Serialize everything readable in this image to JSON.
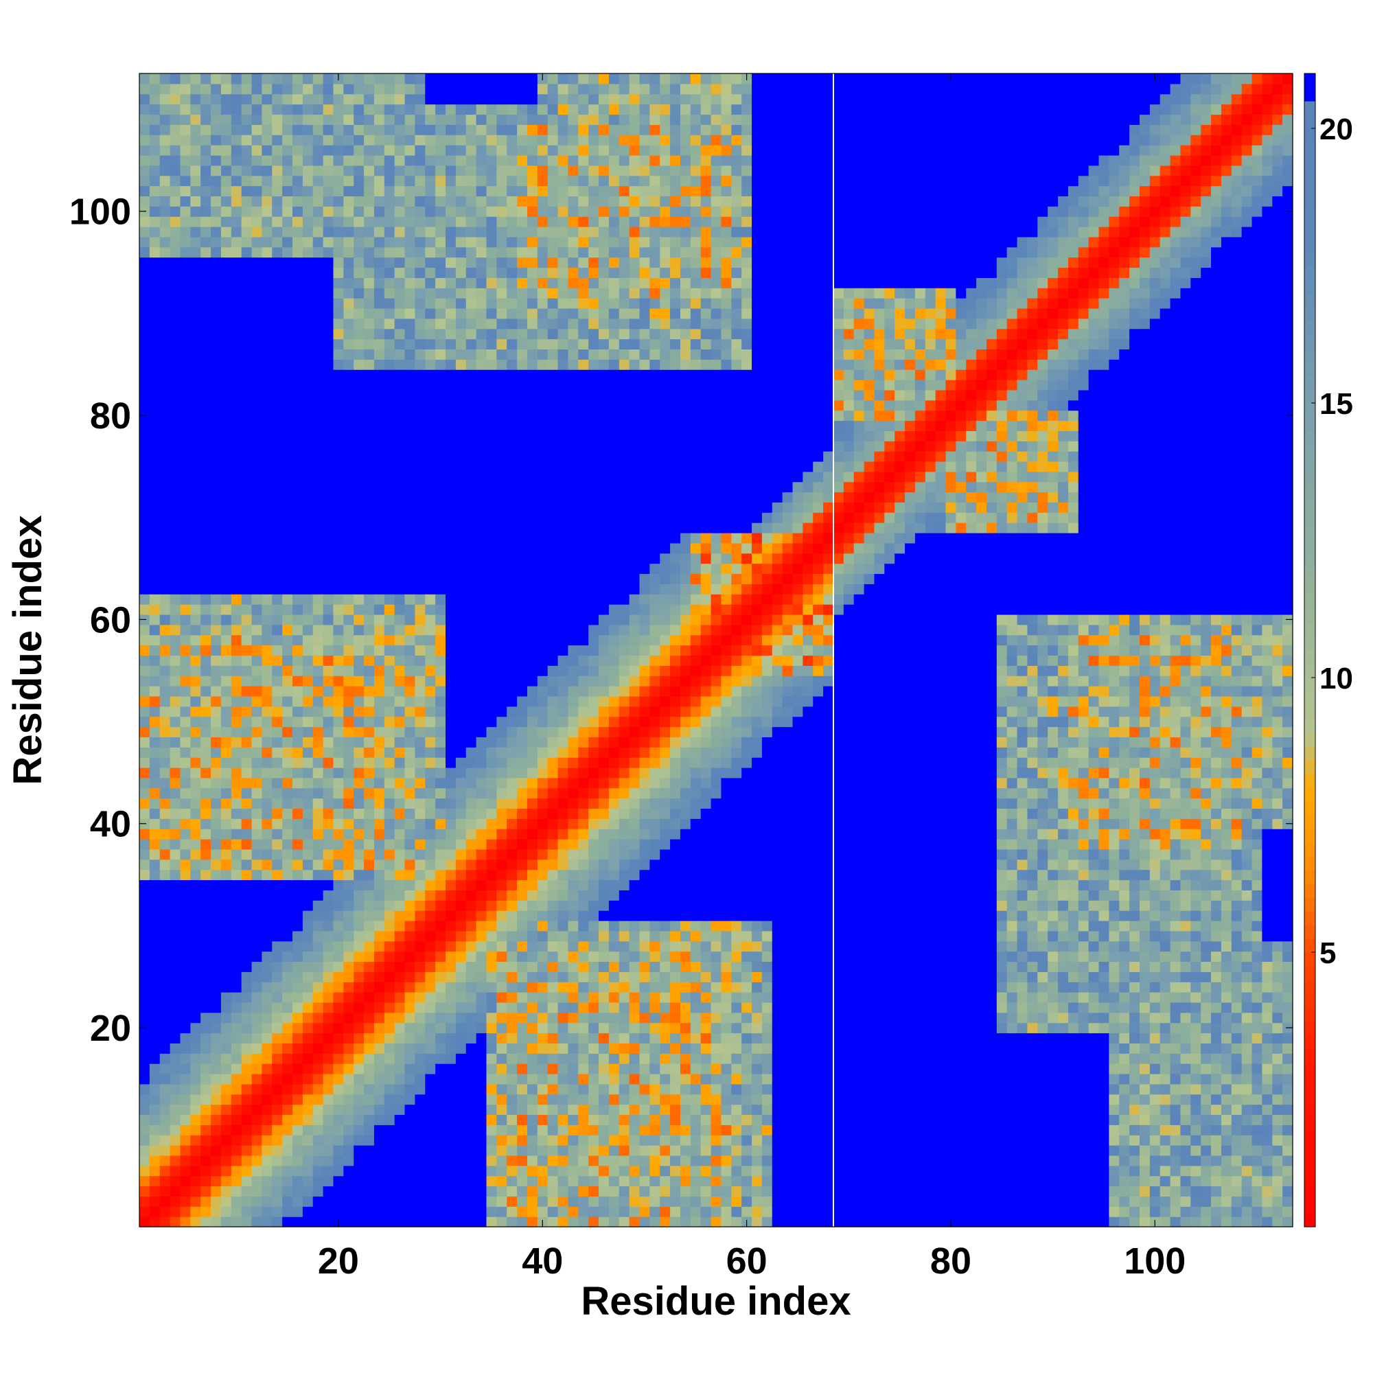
{
  "chart_data": {
    "type": "heatmap",
    "title": "",
    "xlabel": "Residue index",
    "ylabel": "Residue index",
    "n_residues": 113,
    "x_range": [
      0.5,
      113.5
    ],
    "y_range": [
      0.5,
      113.5
    ],
    "x_ticks": [
      20,
      40,
      60,
      80,
      100
    ],
    "y_ticks": [
      20,
      40,
      60,
      80,
      100
    ],
    "grid": false,
    "value_range": [
      0,
      21
    ],
    "saturation_value": 21,
    "colorbar": {
      "ticks": [
        5,
        10,
        15,
        20
      ],
      "position": "right",
      "stops": [
        {
          "value": 0,
          "color": "#ff0000"
        },
        {
          "value": 3,
          "color": "#ff1a00"
        },
        {
          "value": 5,
          "color": "#ff4a00"
        },
        {
          "value": 6.5,
          "color": "#ff8c00"
        },
        {
          "value": 8,
          "color": "#ffaa00"
        },
        {
          "value": 9,
          "color": "#b5c590"
        },
        {
          "value": 12,
          "color": "#8fb09a"
        },
        {
          "value": 15,
          "color": "#7a9fae"
        },
        {
          "value": 18,
          "color": "#5d87b9"
        },
        {
          "value": 20.4,
          "color": "#5a82bb"
        },
        {
          "value": 20.5,
          "color": "#0000ff"
        },
        {
          "value": 21,
          "color": "#0000ff"
        }
      ]
    },
    "gap_column_residue": 68.5,
    "structure": {
      "diagonal_width": 3.0,
      "segments": [
        {
          "from": 1,
          "to": 68,
          "helix_band": 6.5
        },
        {
          "from": 69,
          "to": 113,
          "helix_band": 2.5
        }
      ],
      "cross_contacts": [
        {
          "a": [
            1,
            30
          ],
          "b": [
            35,
            62
          ],
          "level": 13
        },
        {
          "a": [
            1,
            28
          ],
          "b": [
            36,
            58
          ],
          "level": 11
        },
        {
          "a": [
            20,
            60
          ],
          "b": [
            85,
            110
          ],
          "level": 14
        },
        {
          "a": [
            38,
            58
          ],
          "b": [
            92,
            108
          ],
          "level": 11
        },
        {
          "a": [
            55,
            68
          ],
          "b": [
            60,
            68
          ],
          "level": 9
        },
        {
          "a": [
            69,
            80
          ],
          "b": [
            80,
            92
          ],
          "level": 11
        },
        {
          "a": [
            90,
            113
          ],
          "b": [
            40,
            60
          ],
          "level": 13
        },
        {
          "a": [
            96,
            113
          ],
          "b": [
            1,
            28
          ],
          "level": 14
        }
      ]
    }
  }
}
